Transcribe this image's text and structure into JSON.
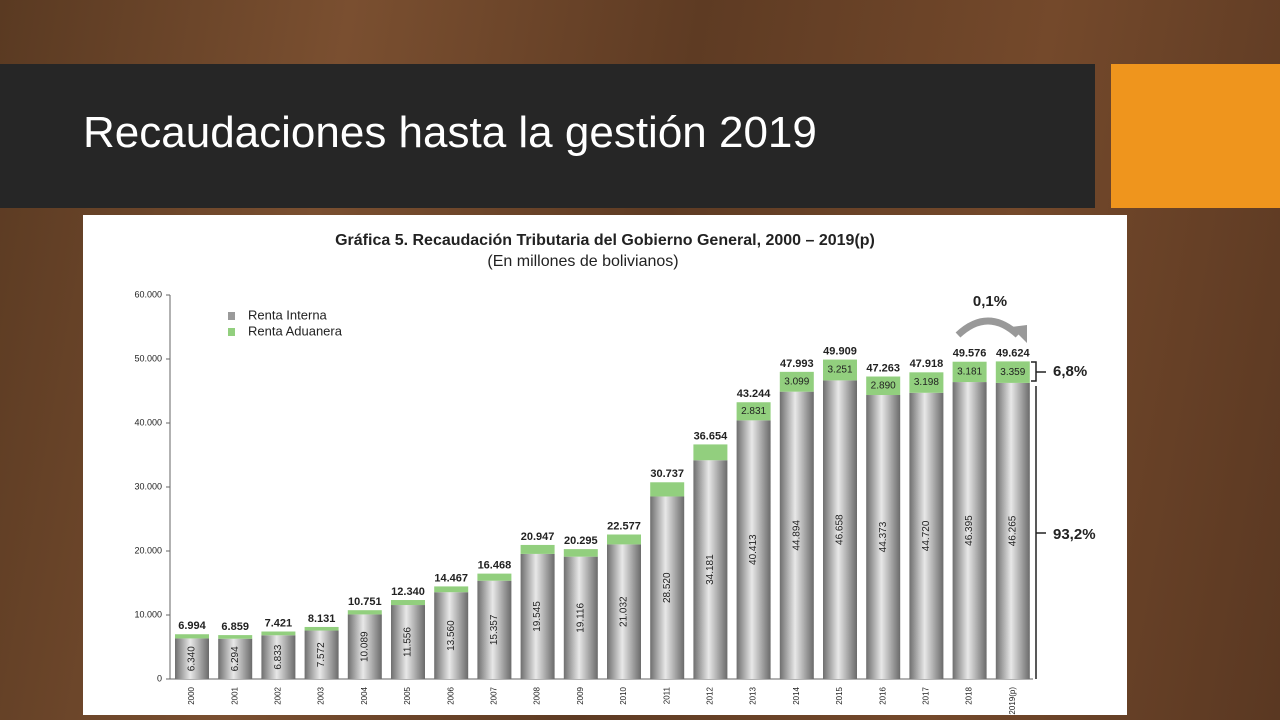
{
  "slide": {
    "title": "Recaudaciones hasta la gestión 2019"
  },
  "chart_data": {
    "type": "stacked-bar",
    "title": "Gráfica 5. Recaudación Tributaria del Gobierno General, 2000 – 2019(p)",
    "subtitle": "(En millones de bolivianos)",
    "categories": [
      "2000",
      "2001",
      "2002",
      "2003",
      "2004",
      "2005",
      "2006",
      "2007",
      "2008",
      "2009",
      "2010",
      "2011",
      "2012",
      "2013",
      "2014",
      "2015",
      "2016",
      "2017",
      "2018",
      "2019(p)"
    ],
    "series": [
      {
        "name": "Renta Interna",
        "color": "#9a9a9a",
        "values": [
          6340,
          6294,
          6833,
          7572,
          10089,
          11556,
          13560,
          15357,
          19545,
          19116,
          21032,
          28520,
          34181,
          40413,
          44894,
          46658,
          44373,
          44720,
          46395,
          46265
        ],
        "value_labels": [
          "6.340",
          "6.294",
          "6.833",
          "7.572",
          "10.089",
          "11.556",
          "13.560",
          "15.357",
          "19.545",
          "19.116",
          "21.032",
          "28.520",
          "34.181",
          "40.413",
          "44.894",
          "46.658",
          "44.373",
          "44.720",
          "46.395",
          "46.265"
        ]
      },
      {
        "name": "Renta Aduanera",
        "color": "#92cf7e",
        "values": [
          654,
          565,
          588,
          559,
          662,
          784,
          907,
          1111,
          1402,
          1179,
          1545,
          2217,
          2473,
          2831,
          3099,
          3251,
          2890,
          3198,
          3181,
          3359
        ],
        "value_labels": [
          null,
          null,
          null,
          null,
          null,
          null,
          null,
          null,
          null,
          null,
          null,
          null,
          null,
          "2.831",
          "3.099",
          "3.251",
          "2.890",
          "3.198",
          "3.181",
          "3.359"
        ]
      }
    ],
    "totals": {
      "values": [
        6994,
        6859,
        7421,
        8131,
        10751,
        12340,
        14467,
        16468,
        20947,
        20295,
        22577,
        30737,
        36654,
        43244,
        47993,
        49909,
        47263,
        47918,
        49576,
        49624
      ],
      "value_labels": [
        "6.994",
        "6.859",
        "7.421",
        "8.131",
        "10.751",
        "12.340",
        "14.467",
        "16.468",
        "20.947",
        "20.295",
        "22.577",
        "30.737",
        "36.654",
        "43.244",
        "47.993",
        "49.909",
        "47.263",
        "47.918",
        "49.576",
        "49.624"
      ]
    },
    "ylim": [
      0,
      60000
    ],
    "yticks": [
      0,
      {
        "value": 10000,
        "label": "10.000"
      },
      {
        "value": 20000,
        "label": "20.000"
      },
      {
        "value": 30000,
        "label": "30.000"
      },
      {
        "value": 40000,
        "label": "40.000"
      },
      {
        "value": 50000,
        "label": "50.000"
      },
      {
        "value": 60000,
        "label": "60.000"
      }
    ],
    "legend": "top-left",
    "annotations": [
      "0,1%",
      "6,8%",
      "93,2%"
    ]
  }
}
